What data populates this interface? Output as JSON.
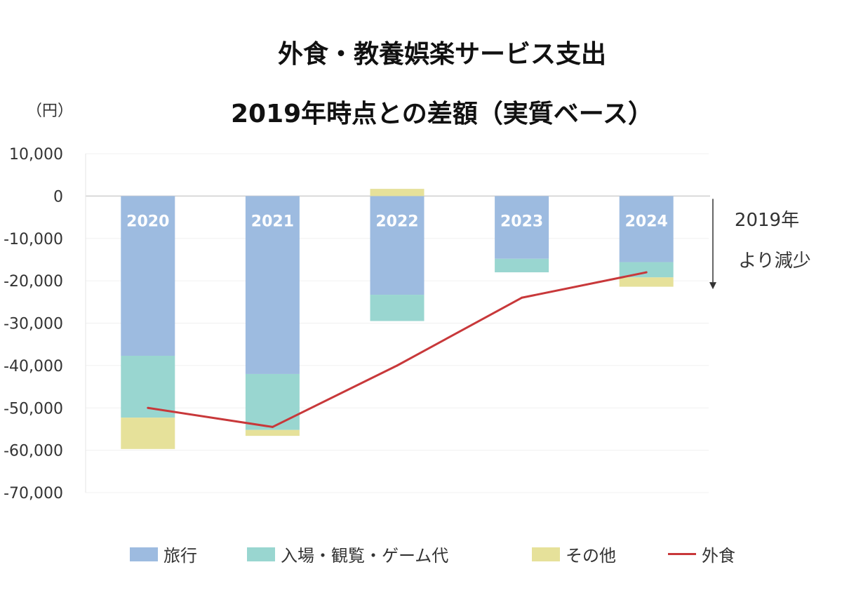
{
  "chart_data": {
    "type": "bar",
    "stacked": true,
    "title": "外食・教養娯楽サービス支出",
    "subtitle": "2019年時点との差額（実質ベース）",
    "ylabel": "（円）",
    "ylim": [
      -70000,
      10000
    ],
    "yticks": [
      10000,
      0,
      -10000,
      -20000,
      -30000,
      -40000,
      -50000,
      -60000,
      -70000
    ],
    "ytick_labels": [
      "10,000",
      "0",
      "-10,000",
      "-20,000",
      "-30,000",
      "-40,000",
      "-50,000",
      "-60,000",
      "-70,000"
    ],
    "categories": [
      "2020",
      "2021",
      "2022",
      "2023",
      "2024"
    ],
    "series": [
      {
        "name": "旅行",
        "kind": "bar",
        "color": "#9dbbe0",
        "values": [
          -37700,
          -42000,
          -23300,
          -14800,
          -15600
        ]
      },
      {
        "name": "入場・観覧・ゲーム代",
        "kind": "bar",
        "color": "#99d6d0",
        "values": [
          -14600,
          -13200,
          -6200,
          -3200,
          -3600
        ]
      },
      {
        "name": "その他",
        "kind": "bar",
        "color": "#e6e19a",
        "values": [
          -7400,
          -1400,
          1700,
          0,
          -2200
        ]
      },
      {
        "name": "外食",
        "kind": "line",
        "color": "#c8383a",
        "values": [
          -50000,
          -54500,
          -40000,
          -24000,
          -18000
        ]
      }
    ],
    "annotation": {
      "line1": "2019年",
      "line2": "より減少",
      "direction": "down"
    },
    "grid": true,
    "legend_position": "bottom"
  }
}
